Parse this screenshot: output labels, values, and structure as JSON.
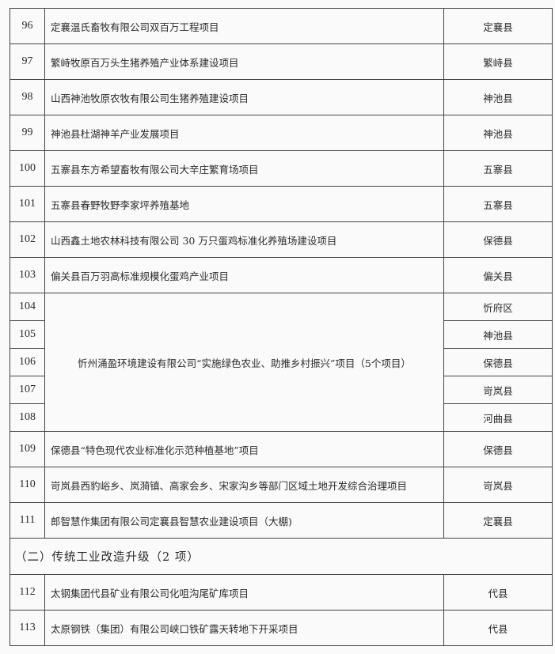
{
  "rows": [
    {
      "no": "96",
      "name": "定襄温氏畜牧有限公司双百万工程项目",
      "county": "定襄县"
    },
    {
      "no": "97",
      "name": "繁峙牧原百万头生猪养殖产业体系建设项目",
      "county": "繁峙县"
    },
    {
      "no": "98",
      "name": "山西神池牧原农牧有限公司生猪养殖建设项目",
      "county": "神池县"
    },
    {
      "no": "99",
      "name": "神池县杜湖神羊产业发展项目",
      "county": "神池县"
    },
    {
      "no": "100",
      "name": "五寨县东方希望畜牧有限公司大辛庄繁育场项目",
      "county": "五寨县"
    },
    {
      "no": "101",
      "name": "五寨县春野牧野李家坪养殖基地",
      "county": "五寨县"
    },
    {
      "no": "102",
      "name": "山西鑫土地农林科技有限公司 30 万只蛋鸡标准化养殖场建设项目",
      "county": "保德县"
    },
    {
      "no": "103",
      "name": "偏关县百万羽高标准规模化蛋鸡产业项目",
      "county": "偏关县"
    }
  ],
  "merged": {
    "name": "忻州涌盈环境建设有限公司“实施绿色农业、助推乡村振兴”项目（5个项目）",
    "rows": [
      {
        "no": "104",
        "county": "忻府区"
      },
      {
        "no": "105",
        "county": "神池县"
      },
      {
        "no": "106",
        "county": "保德县"
      },
      {
        "no": "107",
        "county": "岢岚县"
      },
      {
        "no": "108",
        "county": "河曲县"
      }
    ]
  },
  "rows2": [
    {
      "no": "109",
      "name": "保德县“特色现代农业标准化示范种植基地”项目",
      "county": "保德县"
    },
    {
      "no": "110",
      "name": "岢岚县西豹峪乡、岚漪镇、高家会乡、宋家沟乡等部门区域土地开发综合治理项目",
      "county": "岢岚县"
    },
    {
      "no": "111",
      "name": "郎智慧作集团有限公司定襄县智慧农业建设项目（大棚)",
      "county": "定襄县"
    }
  ],
  "section": "（二）传统工业改造升级（2 项）",
  "rows3": [
    {
      "no": "112",
      "name": "太钢集团代县矿业有限公司化咀沟尾矿库项目",
      "county": "代县"
    },
    {
      "no": "113",
      "name": "太原钢铁（集团）有限公司峡口铁矿露天转地下开采项目",
      "county": "代县"
    }
  ]
}
